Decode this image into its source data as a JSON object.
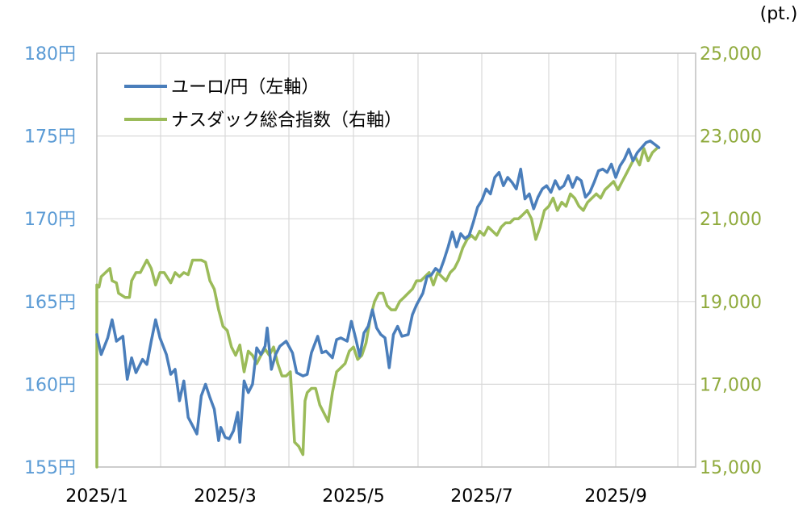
{
  "chart_data": {
    "type": "line",
    "unit_label": "(pt.)",
    "x_tick_labels": [
      "2025/1",
      "2025/3",
      "2025/5",
      "2025/7",
      "2025/9"
    ],
    "left_axis": {
      "ylim": [
        155,
        180
      ],
      "tick_labels": [
        "180円",
        "175円",
        "170円",
        "165円",
        "160円",
        "155円"
      ],
      "tick_values": [
        180,
        175,
        170,
        165,
        160,
        155
      ],
      "color": "#5b9bd5"
    },
    "right_axis": {
      "ylim": [
        15000,
        25000
      ],
      "tick_labels": [
        "25,000",
        "23,000",
        "21,000",
        "19,000",
        "17,000",
        "15,000"
      ],
      "tick_values": [
        25000,
        23000,
        21000,
        19000,
        17000,
        15000
      ],
      "color": "#8faa3c"
    },
    "gridlines": {
      "vertical": true,
      "horizontal": true
    },
    "legend_placement": "top-left",
    "series": [
      {
        "name": "ユーロ/円（左軸）",
        "axis": "left",
        "color": "#4a7ebb",
        "points": [
          [
            "2025-01-01",
            163.0
          ],
          [
            "2025-01-03",
            161.8
          ],
          [
            "2025-01-06",
            162.8
          ],
          [
            "2025-01-08",
            163.9
          ],
          [
            "2025-01-10",
            162.6
          ],
          [
            "2025-01-13",
            162.9
          ],
          [
            "2025-01-15",
            160.3
          ],
          [
            "2025-01-17",
            161.6
          ],
          [
            "2025-01-19",
            160.7
          ],
          [
            "2025-01-22",
            161.5
          ],
          [
            "2025-01-24",
            161.2
          ],
          [
            "2025-01-26",
            162.6
          ],
          [
            "2025-01-28",
            163.9
          ],
          [
            "2025-01-30",
            162.8
          ],
          [
            "2025-02-02",
            161.8
          ],
          [
            "2025-02-04",
            160.6
          ],
          [
            "2025-02-06",
            160.9
          ],
          [
            "2025-02-08",
            159.0
          ],
          [
            "2025-02-10",
            160.2
          ],
          [
            "2025-02-12",
            158.0
          ],
          [
            "2025-02-14",
            157.5
          ],
          [
            "2025-02-16",
            157.0
          ],
          [
            "2025-02-18",
            159.3
          ],
          [
            "2025-02-20",
            160.0
          ],
          [
            "2025-02-22",
            159.2
          ],
          [
            "2025-02-24",
            158.5
          ],
          [
            "2025-02-26",
            156.6
          ],
          [
            "2025-02-27",
            157.4
          ],
          [
            "2025-03-01",
            156.8
          ],
          [
            "2025-03-03",
            156.7
          ],
          [
            "2025-03-05",
            157.2
          ],
          [
            "2025-03-07",
            158.3
          ],
          [
            "2025-03-08",
            156.5
          ],
          [
            "2025-03-10",
            160.2
          ],
          [
            "2025-03-12",
            159.5
          ],
          [
            "2025-03-14",
            160.0
          ],
          [
            "2025-03-16",
            162.2
          ],
          [
            "2025-03-18",
            161.8
          ],
          [
            "2025-03-20",
            162.3
          ],
          [
            "2025-03-21",
            163.4
          ],
          [
            "2025-03-23",
            160.9
          ],
          [
            "2025-03-25",
            161.8
          ],
          [
            "2025-03-27",
            162.3
          ],
          [
            "2025-03-30",
            162.6
          ],
          [
            "2025-04-02",
            161.9
          ],
          [
            "2025-04-04",
            160.7
          ],
          [
            "2025-04-07",
            160.5
          ],
          [
            "2025-04-09",
            160.6
          ],
          [
            "2025-04-11",
            161.9
          ],
          [
            "2025-04-14",
            162.9
          ],
          [
            "2025-04-16",
            161.9
          ],
          [
            "2025-04-18",
            162.0
          ],
          [
            "2025-04-21",
            161.6
          ],
          [
            "2025-04-23",
            162.7
          ],
          [
            "2025-04-25",
            162.8
          ],
          [
            "2025-04-28",
            162.6
          ],
          [
            "2025-04-30",
            163.8
          ],
          [
            "2025-05-02",
            162.8
          ],
          [
            "2025-05-04",
            161.7
          ],
          [
            "2025-05-06",
            163.1
          ],
          [
            "2025-05-08",
            163.5
          ],
          [
            "2025-05-10",
            164.5
          ],
          [
            "2025-05-12",
            163.4
          ],
          [
            "2025-05-14",
            163.0
          ],
          [
            "2025-05-16",
            162.8
          ],
          [
            "2025-05-18",
            161.0
          ],
          [
            "2025-05-20",
            163.0
          ],
          [
            "2025-05-22",
            163.5
          ],
          [
            "2025-05-24",
            162.9
          ],
          [
            "2025-05-27",
            163.0
          ],
          [
            "2025-05-29",
            164.2
          ],
          [
            "2025-05-31",
            164.8
          ],
          [
            "2025-06-03",
            165.5
          ],
          [
            "2025-06-05",
            166.5
          ],
          [
            "2025-06-07",
            166.6
          ],
          [
            "2025-06-09",
            167.0
          ],
          [
            "2025-06-11",
            166.8
          ],
          [
            "2025-06-13",
            167.5
          ],
          [
            "2025-06-15",
            168.3
          ],
          [
            "2025-06-17",
            169.2
          ],
          [
            "2025-06-19",
            168.3
          ],
          [
            "2025-06-21",
            169.1
          ],
          [
            "2025-06-23",
            168.8
          ],
          [
            "2025-06-25",
            169.0
          ],
          [
            "2025-06-27",
            169.8
          ],
          [
            "2025-06-29",
            170.7
          ],
          [
            "2025-07-01",
            171.1
          ],
          [
            "2025-07-03",
            171.8
          ],
          [
            "2025-07-05",
            171.5
          ],
          [
            "2025-07-07",
            172.5
          ],
          [
            "2025-07-09",
            172.8
          ],
          [
            "2025-07-11",
            172.0
          ],
          [
            "2025-07-13",
            172.5
          ],
          [
            "2025-07-15",
            172.2
          ],
          [
            "2025-07-17",
            171.8
          ],
          [
            "2025-07-19",
            173.0
          ],
          [
            "2025-07-21",
            171.2
          ],
          [
            "2025-07-23",
            171.5
          ],
          [
            "2025-07-25",
            170.6
          ],
          [
            "2025-07-27",
            171.3
          ],
          [
            "2025-07-29",
            171.8
          ],
          [
            "2025-07-31",
            172.0
          ],
          [
            "2025-08-02",
            171.6
          ],
          [
            "2025-08-04",
            172.3
          ],
          [
            "2025-08-06",
            171.8
          ],
          [
            "2025-08-08",
            172.0
          ],
          [
            "2025-08-10",
            172.6
          ],
          [
            "2025-08-12",
            171.9
          ],
          [
            "2025-08-14",
            172.5
          ],
          [
            "2025-08-16",
            172.3
          ],
          [
            "2025-08-18",
            171.3
          ],
          [
            "2025-08-20",
            171.6
          ],
          [
            "2025-08-22",
            172.2
          ],
          [
            "2025-08-24",
            172.9
          ],
          [
            "2025-08-26",
            173.0
          ],
          [
            "2025-08-28",
            172.8
          ],
          [
            "2025-08-30",
            173.3
          ],
          [
            "2025-09-01",
            172.5
          ],
          [
            "2025-09-03",
            173.2
          ],
          [
            "2025-09-05",
            173.6
          ],
          [
            "2025-09-07",
            174.2
          ],
          [
            "2025-09-09",
            173.5
          ],
          [
            "2025-09-11",
            174.0
          ],
          [
            "2025-09-13",
            174.3
          ],
          [
            "2025-09-15",
            174.6
          ],
          [
            "2025-09-17",
            174.7
          ],
          [
            "2025-09-19",
            174.5
          ],
          [
            "2025-09-21",
            174.3
          ]
        ]
      },
      {
        "name": "ナスダック総合指数（右軸）",
        "axis": "right",
        "color": "#9bbb59",
        "points": [
          [
            "2025-01-01",
            15000
          ],
          [
            "2025-01-01",
            19400
          ],
          [
            "2025-01-02",
            19350
          ],
          [
            "2025-01-03",
            19600
          ],
          [
            "2025-01-05",
            19700
          ],
          [
            "2025-01-07",
            19800
          ],
          [
            "2025-01-08",
            19500
          ],
          [
            "2025-01-10",
            19450
          ],
          [
            "2025-01-11",
            19200
          ],
          [
            "2025-01-14",
            19100
          ],
          [
            "2025-01-16",
            19100
          ],
          [
            "2025-01-17",
            19500
          ],
          [
            "2025-01-19",
            19700
          ],
          [
            "2025-01-21",
            19700
          ],
          [
            "2025-01-23",
            19900
          ],
          [
            "2025-01-24",
            20000
          ],
          [
            "2025-01-26",
            19800
          ],
          [
            "2025-01-28",
            19400
          ],
          [
            "2025-01-30",
            19700
          ],
          [
            "2025-02-01",
            19700
          ],
          [
            "2025-02-04",
            19450
          ],
          [
            "2025-02-06",
            19700
          ],
          [
            "2025-02-08",
            19600
          ],
          [
            "2025-02-10",
            19700
          ],
          [
            "2025-02-12",
            19650
          ],
          [
            "2025-02-14",
            20000
          ],
          [
            "2025-02-16",
            20000
          ],
          [
            "2025-02-18",
            20000
          ],
          [
            "2025-02-20",
            19950
          ],
          [
            "2025-02-22",
            19500
          ],
          [
            "2025-02-24",
            19300
          ],
          [
            "2025-02-26",
            18800
          ],
          [
            "2025-02-28",
            18400
          ],
          [
            "2025-03-02",
            18300
          ],
          [
            "2025-03-04",
            17900
          ],
          [
            "2025-03-06",
            17700
          ],
          [
            "2025-03-08",
            17950
          ],
          [
            "2025-03-10",
            17300
          ],
          [
            "2025-03-12",
            17800
          ],
          [
            "2025-03-14",
            17700
          ],
          [
            "2025-03-16",
            17500
          ],
          [
            "2025-03-18",
            17700
          ],
          [
            "2025-03-20",
            17850
          ],
          [
            "2025-03-22",
            17700
          ],
          [
            "2025-03-24",
            17900
          ],
          [
            "2025-03-26",
            17500
          ],
          [
            "2025-03-28",
            17200
          ],
          [
            "2025-03-30",
            17200
          ],
          [
            "2025-04-01",
            17300
          ],
          [
            "2025-04-03",
            15600
          ],
          [
            "2025-04-05",
            15500
          ],
          [
            "2025-04-07",
            15300
          ],
          [
            "2025-04-08",
            16600
          ],
          [
            "2025-04-09",
            16800
          ],
          [
            "2025-04-11",
            16900
          ],
          [
            "2025-04-13",
            16900
          ],
          [
            "2025-04-15",
            16500
          ],
          [
            "2025-04-17",
            16300
          ],
          [
            "2025-04-19",
            16100
          ],
          [
            "2025-04-21",
            16800
          ],
          [
            "2025-04-23",
            17300
          ],
          [
            "2025-04-25",
            17400
          ],
          [
            "2025-04-27",
            17500
          ],
          [
            "2025-04-29",
            17800
          ],
          [
            "2025-05-01",
            17900
          ],
          [
            "2025-05-03",
            17600
          ],
          [
            "2025-05-05",
            17700
          ],
          [
            "2025-05-07",
            18000
          ],
          [
            "2025-05-09",
            18600
          ],
          [
            "2025-05-11",
            19000
          ],
          [
            "2025-05-13",
            19200
          ],
          [
            "2025-05-15",
            19200
          ],
          [
            "2025-05-17",
            18900
          ],
          [
            "2025-05-19",
            18800
          ],
          [
            "2025-05-21",
            18800
          ],
          [
            "2025-05-23",
            19000
          ],
          [
            "2025-05-25",
            19100
          ],
          [
            "2025-05-27",
            19200
          ],
          [
            "2025-05-29",
            19300
          ],
          [
            "2025-05-31",
            19500
          ],
          [
            "2025-06-02",
            19500
          ],
          [
            "2025-06-04",
            19600
          ],
          [
            "2025-06-06",
            19700
          ],
          [
            "2025-06-08",
            19400
          ],
          [
            "2025-06-10",
            19700
          ],
          [
            "2025-06-12",
            19600
          ],
          [
            "2025-06-14",
            19500
          ],
          [
            "2025-06-16",
            19700
          ],
          [
            "2025-06-18",
            19800
          ],
          [
            "2025-06-20",
            20000
          ],
          [
            "2025-06-22",
            20300
          ],
          [
            "2025-06-24",
            20500
          ],
          [
            "2025-06-26",
            20600
          ],
          [
            "2025-06-28",
            20500
          ],
          [
            "2025-06-30",
            20700
          ],
          [
            "2025-07-02",
            20600
          ],
          [
            "2025-07-04",
            20800
          ],
          [
            "2025-07-06",
            20700
          ],
          [
            "2025-07-08",
            20600
          ],
          [
            "2025-07-10",
            20800
          ],
          [
            "2025-07-12",
            20900
          ],
          [
            "2025-07-14",
            20900
          ],
          [
            "2025-07-16",
            21000
          ],
          [
            "2025-07-18",
            21000
          ],
          [
            "2025-07-20",
            21100
          ],
          [
            "2025-07-22",
            21200
          ],
          [
            "2025-07-24",
            21000
          ],
          [
            "2025-07-26",
            20500
          ],
          [
            "2025-07-28",
            20800
          ],
          [
            "2025-07-30",
            21200
          ],
          [
            "2025-08-01",
            21300
          ],
          [
            "2025-08-03",
            21500
          ],
          [
            "2025-08-05",
            21200
          ],
          [
            "2025-08-07",
            21400
          ],
          [
            "2025-08-09",
            21300
          ],
          [
            "2025-08-11",
            21600
          ],
          [
            "2025-08-13",
            21500
          ],
          [
            "2025-08-15",
            21300
          ],
          [
            "2025-08-17",
            21200
          ],
          [
            "2025-08-19",
            21400
          ],
          [
            "2025-08-21",
            21500
          ],
          [
            "2025-08-23",
            21600
          ],
          [
            "2025-08-25",
            21500
          ],
          [
            "2025-08-27",
            21700
          ],
          [
            "2025-08-29",
            21800
          ],
          [
            "2025-08-31",
            21900
          ],
          [
            "2025-09-02",
            21700
          ],
          [
            "2025-09-04",
            21900
          ],
          [
            "2025-09-06",
            22100
          ],
          [
            "2025-09-08",
            22300
          ],
          [
            "2025-09-10",
            22500
          ],
          [
            "2025-09-12",
            22300
          ],
          [
            "2025-09-14",
            22700
          ],
          [
            "2025-09-16",
            22400
          ],
          [
            "2025-09-18",
            22600
          ],
          [
            "2025-09-20",
            22700
          ]
        ]
      }
    ]
  }
}
